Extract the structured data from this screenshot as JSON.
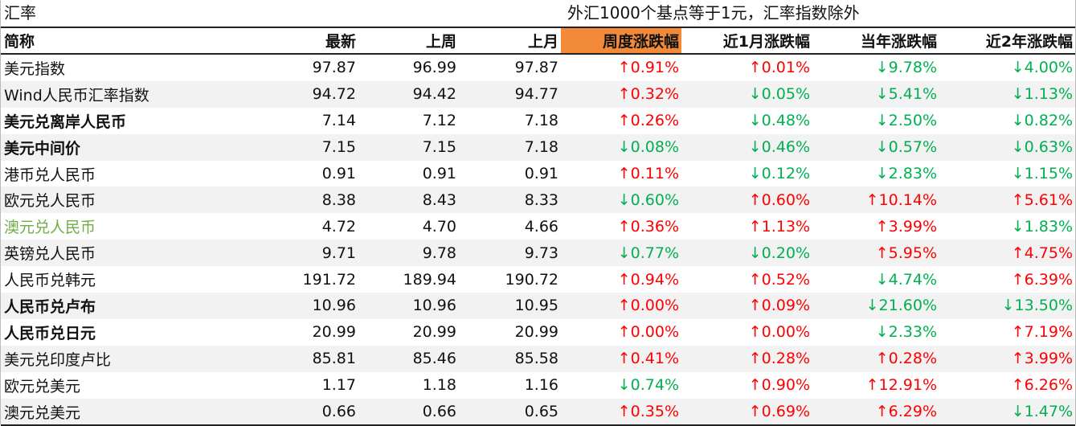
{
  "header": {
    "title": "汇率",
    "note": "外汇1000个基点等于1元，汇率指数除外"
  },
  "table": {
    "columns": [
      "简称",
      "最新",
      "上周",
      "上月",
      "周度涨跌幅",
      "近1月涨跌幅",
      "当年涨跌幅",
      "近2年涨跌幅"
    ],
    "rows": [
      [
        "美元指数",
        "97.87",
        "96.99",
        "97.87",
        "↑0.91%",
        "↑0.01%",
        "↓9.78%",
        "↓4.00%"
      ],
      [
        "Wind人民币汇率指数",
        "94.72",
        "94.42",
        "94.77",
        "↑0.32%",
        "↓0.05%",
        "↓5.41%",
        "↓1.13%"
      ],
      [
        "美元兑离岸人民币",
        "7.14",
        "7.12",
        "7.18",
        "↑0.26%",
        "↓0.48%",
        "↓2.50%",
        "↓0.82%"
      ],
      [
        "美元中间价",
        "7.15",
        "7.15",
        "7.18",
        "↓0.08%",
        "↓0.46%",
        "↓0.57%",
        "↓0.63%"
      ],
      [
        "港币兑人民币",
        "0.91",
        "0.91",
        "0.91",
        "↑0.11%",
        "↓0.12%",
        "↓2.83%",
        "↓1.15%"
      ],
      [
        "欧元兑人民币",
        "8.38",
        "8.43",
        "8.33",
        "↓0.60%",
        "↑0.60%",
        "↑10.14%",
        "↑5.61%"
      ],
      [
        "澳元兑人民币",
        "4.72",
        "4.70",
        "4.66",
        "↑0.36%",
        "↑1.13%",
        "↑3.99%",
        "↓1.83%"
      ],
      [
        "英镑兑人民币",
        "9.71",
        "9.78",
        "9.73",
        "↓0.77%",
        "↓0.20%",
        "↑5.95%",
        "↑4.75%"
      ],
      [
        "人民币兑韩元",
        "191.72",
        "189.94",
        "190.72",
        "↑0.94%",
        "↑0.52%",
        "↓4.74%",
        "↑6.39%"
      ],
      [
        "人民币兑卢布",
        "10.96",
        "10.96",
        "10.95",
        "↑0.00%",
        "↑0.09%",
        "↓21.60%",
        "↓13.50%"
      ],
      [
        "人民币兑日元",
        "20.99",
        "20.99",
        "20.99",
        "↑0.00%",
        "↑0.00%",
        "↓2.33%",
        "↑7.19%"
      ],
      [
        "美元兑印度卢比",
        "85.81",
        "85.46",
        "85.58",
        "↑0.41%",
        "↑0.28%",
        "↑0.28%",
        "↑3.99%"
      ],
      [
        "欧元兑美元",
        "1.17",
        "1.18",
        "1.16",
        "↓0.74%",
        "↑0.90%",
        "↑12.91%",
        "↑6.26%"
      ],
      [
        "澳元兑美元",
        "0.66",
        "0.66",
        "0.65",
        "↑0.35%",
        "↑0.69%",
        "↑6.29%",
        "↓1.47%"
      ]
    ]
  }
}
